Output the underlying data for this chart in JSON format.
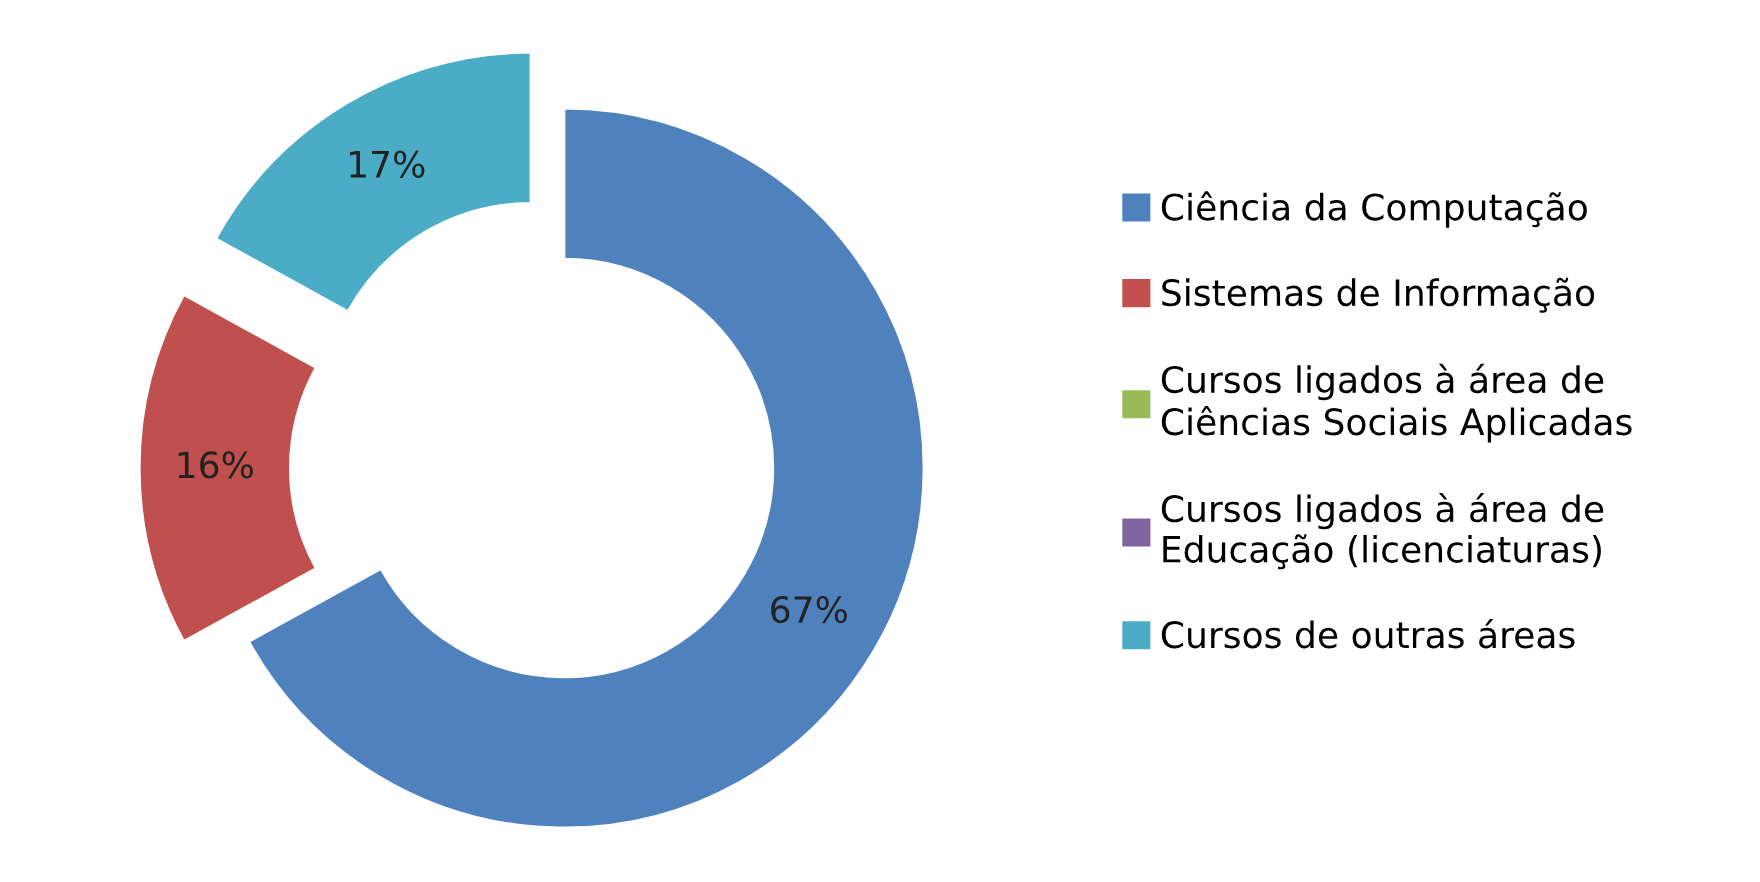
{
  "chart_data": {
    "type": "donut",
    "categories": [
      "Ciência da Computação",
      "Sistemas de Informação",
      "Cursos ligados à área de\nCiências Sociais Aplicadas",
      "Cursos ligados à área de\nEducação (licenciaturas)",
      "Cursos de outras áreas"
    ],
    "values": [
      67,
      16,
      0,
      0,
      17
    ],
    "colors": [
      "#4f81bd",
      "#c0504d",
      "#9bbb59",
      "#8064a2",
      "#4bacc6"
    ],
    "value_labels": [
      "67%",
      "16%",
      null,
      null,
      "17%"
    ],
    "legend": "right"
  }
}
